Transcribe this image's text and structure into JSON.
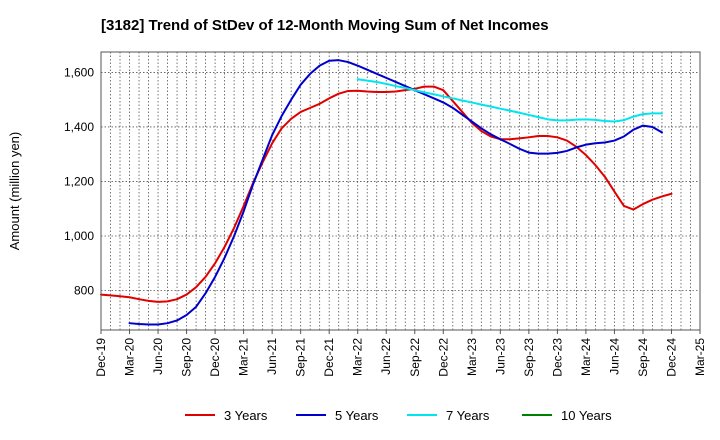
{
  "chart_data": {
    "type": "line",
    "title": "[3182]  Trend of StDev of 12-Month Moving Sum of Net Incomes",
    "xlabel": "",
    "ylabel": "Amount (million yen)",
    "ylim": [
      655,
      1675
    ],
    "yticks": [
      800,
      1000,
      1200,
      1400,
      1600
    ],
    "ytick_labels": [
      "800",
      "1,000",
      "1,200",
      "1,400",
      "1,600"
    ],
    "x_categories": [
      "Dec-19",
      "Mar-20",
      "Jun-20",
      "Sep-20",
      "Dec-20",
      "Mar-21",
      "Jun-21",
      "Sep-21",
      "Dec-21",
      "Mar-22",
      "Jun-22",
      "Sep-22",
      "Dec-22",
      "Mar-23",
      "Jun-23",
      "Sep-23",
      "Dec-23",
      "Mar-24",
      "Jun-24",
      "Sep-24",
      "Dec-24",
      "Mar-25"
    ],
    "months": [
      "Dec-19",
      "Jan-20",
      "Feb-20",
      "Mar-20",
      "Apr-20",
      "May-20",
      "Jun-20",
      "Jul-20",
      "Aug-20",
      "Sep-20",
      "Oct-20",
      "Nov-20",
      "Dec-20",
      "Jan-21",
      "Feb-21",
      "Mar-21",
      "Apr-21",
      "May-21",
      "Jun-21",
      "Jul-21",
      "Aug-21",
      "Sep-21",
      "Oct-21",
      "Nov-21",
      "Dec-21",
      "Jan-22",
      "Feb-22",
      "Mar-22",
      "Apr-22",
      "May-22",
      "Jun-22",
      "Jul-22",
      "Aug-22",
      "Sep-22",
      "Oct-22",
      "Nov-22",
      "Dec-22",
      "Jan-23",
      "Feb-23",
      "Mar-23",
      "Apr-23",
      "May-23",
      "Jun-23",
      "Jul-23",
      "Aug-23",
      "Sep-23",
      "Oct-23",
      "Nov-23",
      "Dec-23",
      "Jan-24",
      "Feb-24",
      "Mar-24",
      "Apr-24",
      "May-24",
      "Jun-24",
      "Jul-24",
      "Aug-24",
      "Sep-24",
      "Oct-24",
      "Nov-24",
      "Dec-24"
    ],
    "series": [
      {
        "name": "3 Years",
        "color": "#e00000",
        "values": [
          785,
          782,
          779,
          775,
          768,
          762,
          758,
          760,
          768,
          785,
          812,
          850,
          900,
          960,
          1030,
          1110,
          1195,
          1270,
          1340,
          1395,
          1430,
          1455,
          1470,
          1485,
          1505,
          1522,
          1532,
          1533,
          1530,
          1528,
          1528,
          1530,
          1535,
          1540,
          1548,
          1548,
          1535,
          1495,
          1455,
          1415,
          1385,
          1365,
          1355,
          1355,
          1358,
          1362,
          1367,
          1367,
          1362,
          1350,
          1327,
          1297,
          1260,
          1217,
          1163,
          1110,
          1097,
          1117,
          1133,
          1145,
          1155
        ]
      },
      {
        "name": "5 Years",
        "color": "#0000cc",
        "values": [
          null,
          null,
          null,
          680,
          677,
          675,
          675,
          680,
          690,
          710,
          740,
          790,
          850,
          920,
          1000,
          1090,
          1190,
          1280,
          1370,
          1440,
          1500,
          1555,
          1595,
          1625,
          1643,
          1645,
          1638,
          1625,
          1610,
          1595,
          1580,
          1565,
          1550,
          1535,
          1520,
          1505,
          1490,
          1470,
          1445,
          1420,
          1395,
          1373,
          1355,
          1338,
          1320,
          1306,
          1302,
          1302,
          1305,
          1312,
          1325,
          1335,
          1340,
          1343,
          1350,
          1365,
          1390,
          1405,
          1400,
          1380,
          null
        ]
      },
      {
        "name": "7 Years",
        "color": "#00e5ee",
        "values": [
          null,
          null,
          null,
          null,
          null,
          null,
          null,
          null,
          null,
          null,
          null,
          null,
          null,
          null,
          null,
          null,
          null,
          null,
          null,
          null,
          null,
          null,
          null,
          null,
          null,
          null,
          null,
          1575,
          1570,
          1565,
          1558,
          1550,
          1543,
          1535,
          1527,
          1520,
          1512,
          1505,
          1497,
          1490,
          1482,
          1475,
          1467,
          1460,
          1452,
          1444,
          1436,
          1428,
          1424,
          1424,
          1427,
          1428,
          1426,
          1422,
          1420,
          1425,
          1438,
          1447,
          1450,
          1450,
          null
        ]
      },
      {
        "name": "10 Years",
        "color": "#008000",
        "values": []
      }
    ],
    "legend": [
      "3 Years",
      "5 Years",
      "7 Years",
      "10 Years"
    ],
    "legend_position": "bottom",
    "grid": true
  }
}
